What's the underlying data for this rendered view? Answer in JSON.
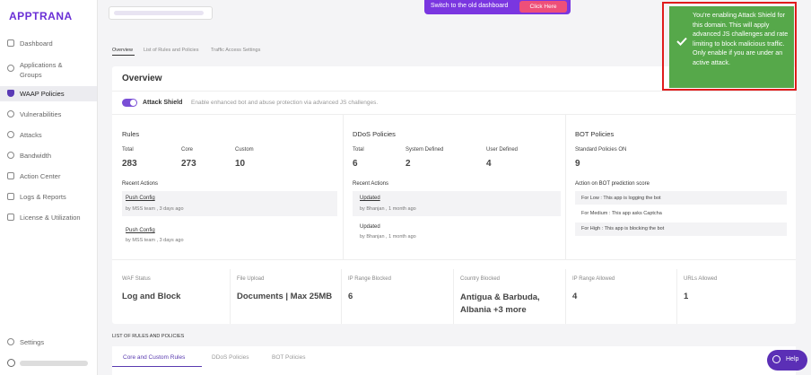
{
  "sidebar": {
    "logo": "APPTRANA",
    "nav": [
      "Dashboard",
      "Applications & Groups",
      "WAAP Policies",
      "Vulnerabilities",
      "Attacks",
      "Bandwidth",
      "Action Center",
      "Logs & Reports",
      "License & Utilization"
    ],
    "settings": "Settings"
  },
  "banner": {
    "text": "Switch to the old dashboard",
    "button": "Click Here"
  },
  "tabs": [
    "Overview",
    "List of Rules and Policies",
    "Traffic Access Settings"
  ],
  "toast": {
    "message": "You're enabling Attack Shield for this domain. This will apply advanced JS challenges and rate limiting to block malicious traffic. Only enable if you are under an active attack."
  },
  "overview": {
    "title": "Overview",
    "attack_shield": {
      "label": "Attack Shield",
      "description": "Enable enhanced bot and abuse protection via advanced JS challenges."
    }
  },
  "rules": {
    "title": "Rules",
    "stats": [
      {
        "label": "Total",
        "value": 283
      },
      {
        "label": "Core",
        "value": 273
      },
      {
        "label": "Custom",
        "value": 10
      }
    ],
    "recent_title": "Recent Actions",
    "recent": [
      {
        "action": "Push Config",
        "meta": "by MSS team , 3 days ago"
      },
      {
        "action": "Push Config",
        "meta": "by MSS team , 3 days ago"
      }
    ]
  },
  "ddos": {
    "title": "DDoS Policies",
    "stats": [
      {
        "label": "Total",
        "value": 6
      },
      {
        "label": "System Defined",
        "value": 2
      },
      {
        "label": "User Defined",
        "value": 4
      }
    ],
    "recent_title": "Recent Actions",
    "recent": [
      {
        "action": "Updated",
        "meta": "by Bhanjan , 1 month ago"
      },
      {
        "action": "Updated",
        "meta": "by Bhanjan , 1 month ago"
      }
    ]
  },
  "bot": {
    "title": "BOT Policies",
    "stat": {
      "label": "Standard Policies ON",
      "value": 9
    },
    "score_title": "Action on BOT prediction score",
    "scores": [
      "For Low : This app is logging the bot",
      "For Medium : This app asks Captcha",
      "For High : This app is blocking the bot"
    ]
  },
  "summary": [
    {
      "label": "WAF Status",
      "value": "Log and Block"
    },
    {
      "label": "File Upload",
      "value": "Documents | Max 25MB"
    },
    {
      "label": "IP Range Blocked",
      "value": 6
    },
    {
      "label": "Country Blocked",
      "value": "Antigua & Barbuda, Albania +3 more"
    },
    {
      "label": "IP Range Allowed",
      "value": 4
    },
    {
      "label": "URLs Allowed",
      "value": 1
    }
  ],
  "list": {
    "title": "LIST OF RULES AND POLICIES",
    "tabs": [
      "Core and Custom Rules",
      "DDoS Policies",
      "BOT Policies"
    ]
  },
  "help": "Help"
}
